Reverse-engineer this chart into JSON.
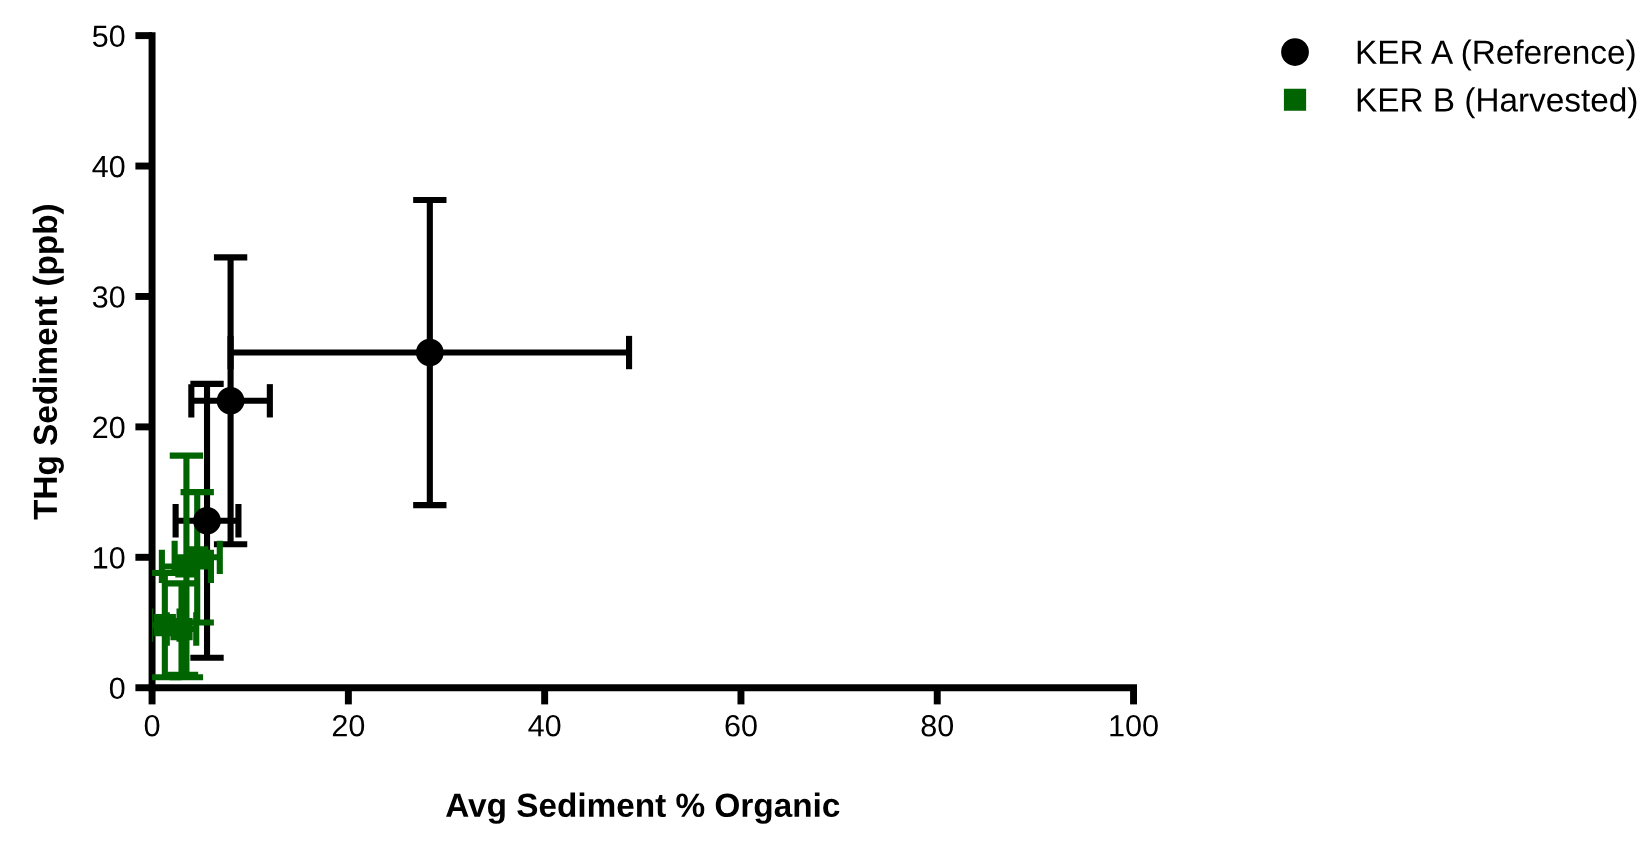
{
  "chart_data": {
    "type": "scatter",
    "xlabel": "Avg Sediment % Organic",
    "ylabel": "THg Sediment (ppb)",
    "xlim": [
      0,
      100
    ],
    "ylim": [
      0,
      50
    ],
    "xticks": [
      0,
      20,
      40,
      60,
      80,
      100
    ],
    "yticks": [
      0,
      10,
      20,
      30,
      40,
      50
    ],
    "grid": false,
    "legend": "top right",
    "series": [
      {
        "name": "KER A (Reference)",
        "color": "#000000",
        "marker": "circle",
        "x": [
          28.3,
          8.0,
          5.6
        ],
        "values": [
          25.7,
          22.0,
          12.8
        ],
        "xerrors": [
          20.3,
          4.0,
          3.2
        ],
        "errors": [
          11.7,
          11.0,
          10.5
        ]
      },
      {
        "name": "KER B (Harvested)",
        "color": "#006400",
        "marker": "square",
        "x": [
          1.3,
          3.0,
          3.5,
          4.6
        ],
        "values": [
          4.8,
          4.5,
          9.3,
          10.0
        ],
        "xerrors": [
          1.5,
          1.5,
          2.5,
          2.3
        ],
        "errors": [
          4.0,
          3.5,
          8.5,
          5.0
        ]
      }
    ]
  }
}
